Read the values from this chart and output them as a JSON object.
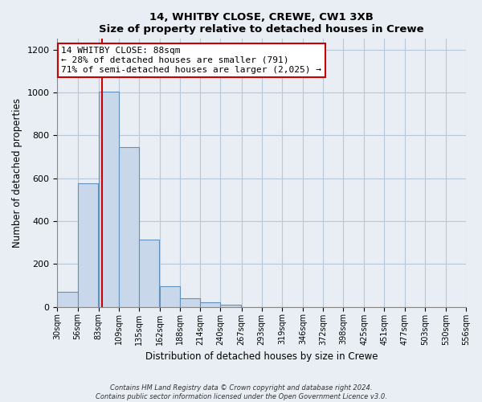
{
  "title": "14, WHITBY CLOSE, CREWE, CW1 3XB",
  "subtitle": "Size of property relative to detached houses in Crewe",
  "xlabel": "Distribution of detached houses by size in Crewe",
  "ylabel": "Number of detached properties",
  "bar_edges": [
    30,
    56,
    83,
    109,
    135,
    162,
    188,
    214,
    240,
    267,
    293,
    319,
    346,
    372,
    398,
    425,
    451,
    477,
    503,
    530,
    556
  ],
  "bar_heights": [
    70,
    575,
    1005,
    745,
    315,
    95,
    40,
    20,
    10,
    0,
    0,
    0,
    0,
    0,
    0,
    0,
    0,
    0,
    0,
    0
  ],
  "bar_color": "#c8d8ea",
  "bar_edge_color": "#6090bb",
  "property_value": 88,
  "vline_color": "#cc0000",
  "vline_x": 88,
  "ylim": [
    0,
    1250
  ],
  "yticks": [
    0,
    200,
    400,
    600,
    800,
    1000,
    1200
  ],
  "annotation_line1": "14 WHITBY CLOSE: 88sqm",
  "annotation_line2": "← 28% of detached houses are smaller (791)",
  "annotation_line3": "71% of semi-detached houses are larger (2,025) →",
  "annotation_box_color": "#ffffff",
  "annotation_box_edge": "#cc0000",
  "footer_line1": "Contains HM Land Registry data © Crown copyright and database right 2024.",
  "footer_line2": "Contains public sector information licensed under the Open Government Licence v3.0.",
  "tick_labels": [
    "30sqm",
    "56sqm",
    "83sqm",
    "109sqm",
    "135sqm",
    "162sqm",
    "188sqm",
    "214sqm",
    "240sqm",
    "267sqm",
    "293sqm",
    "319sqm",
    "346sqm",
    "372sqm",
    "398sqm",
    "425sqm",
    "451sqm",
    "477sqm",
    "503sqm",
    "530sqm",
    "556sqm"
  ],
  "background_color": "#e8eef4",
  "plot_bg_color": "#e8eef4",
  "grid_color": "#b8c8d8"
}
